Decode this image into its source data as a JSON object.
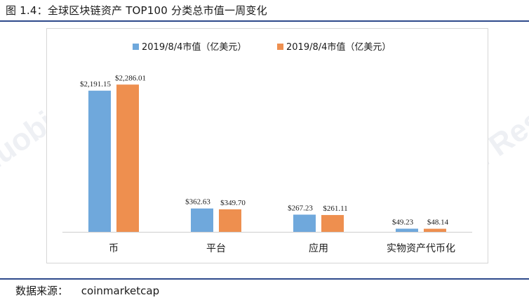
{
  "figure": {
    "title": "图 1.4：全球区块链资产 TOP100 分类总市值一周变化",
    "source_label": "数据来源：",
    "source_value": "coinmarketcap",
    "watermark": "Huobi Research"
  },
  "colors": {
    "series_1": "#6fa8dc",
    "series_2": "#ee8f4f",
    "rule": "#2f4a8c"
  },
  "chart_data": {
    "type": "bar",
    "categories": [
      "币",
      "平台",
      "应用",
      "实物资产代币化"
    ],
    "series": [
      {
        "name": "2019/8/4市值（亿美元）",
        "values": [
          2191.15,
          362.63,
          267.23,
          49.23
        ],
        "labels": [
          "$2,191.15",
          "$362.63",
          "$267.23",
          "$49.23"
        ]
      },
      {
        "name": "2019/8/4市值（亿美元）",
        "values": [
          2286.01,
          349.7,
          261.11,
          48.14
        ],
        "labels": [
          "$2,286.01",
          "$349.70",
          "$261.11",
          "$48.14"
        ]
      }
    ],
    "legend_position": "top",
    "grid": false
  }
}
